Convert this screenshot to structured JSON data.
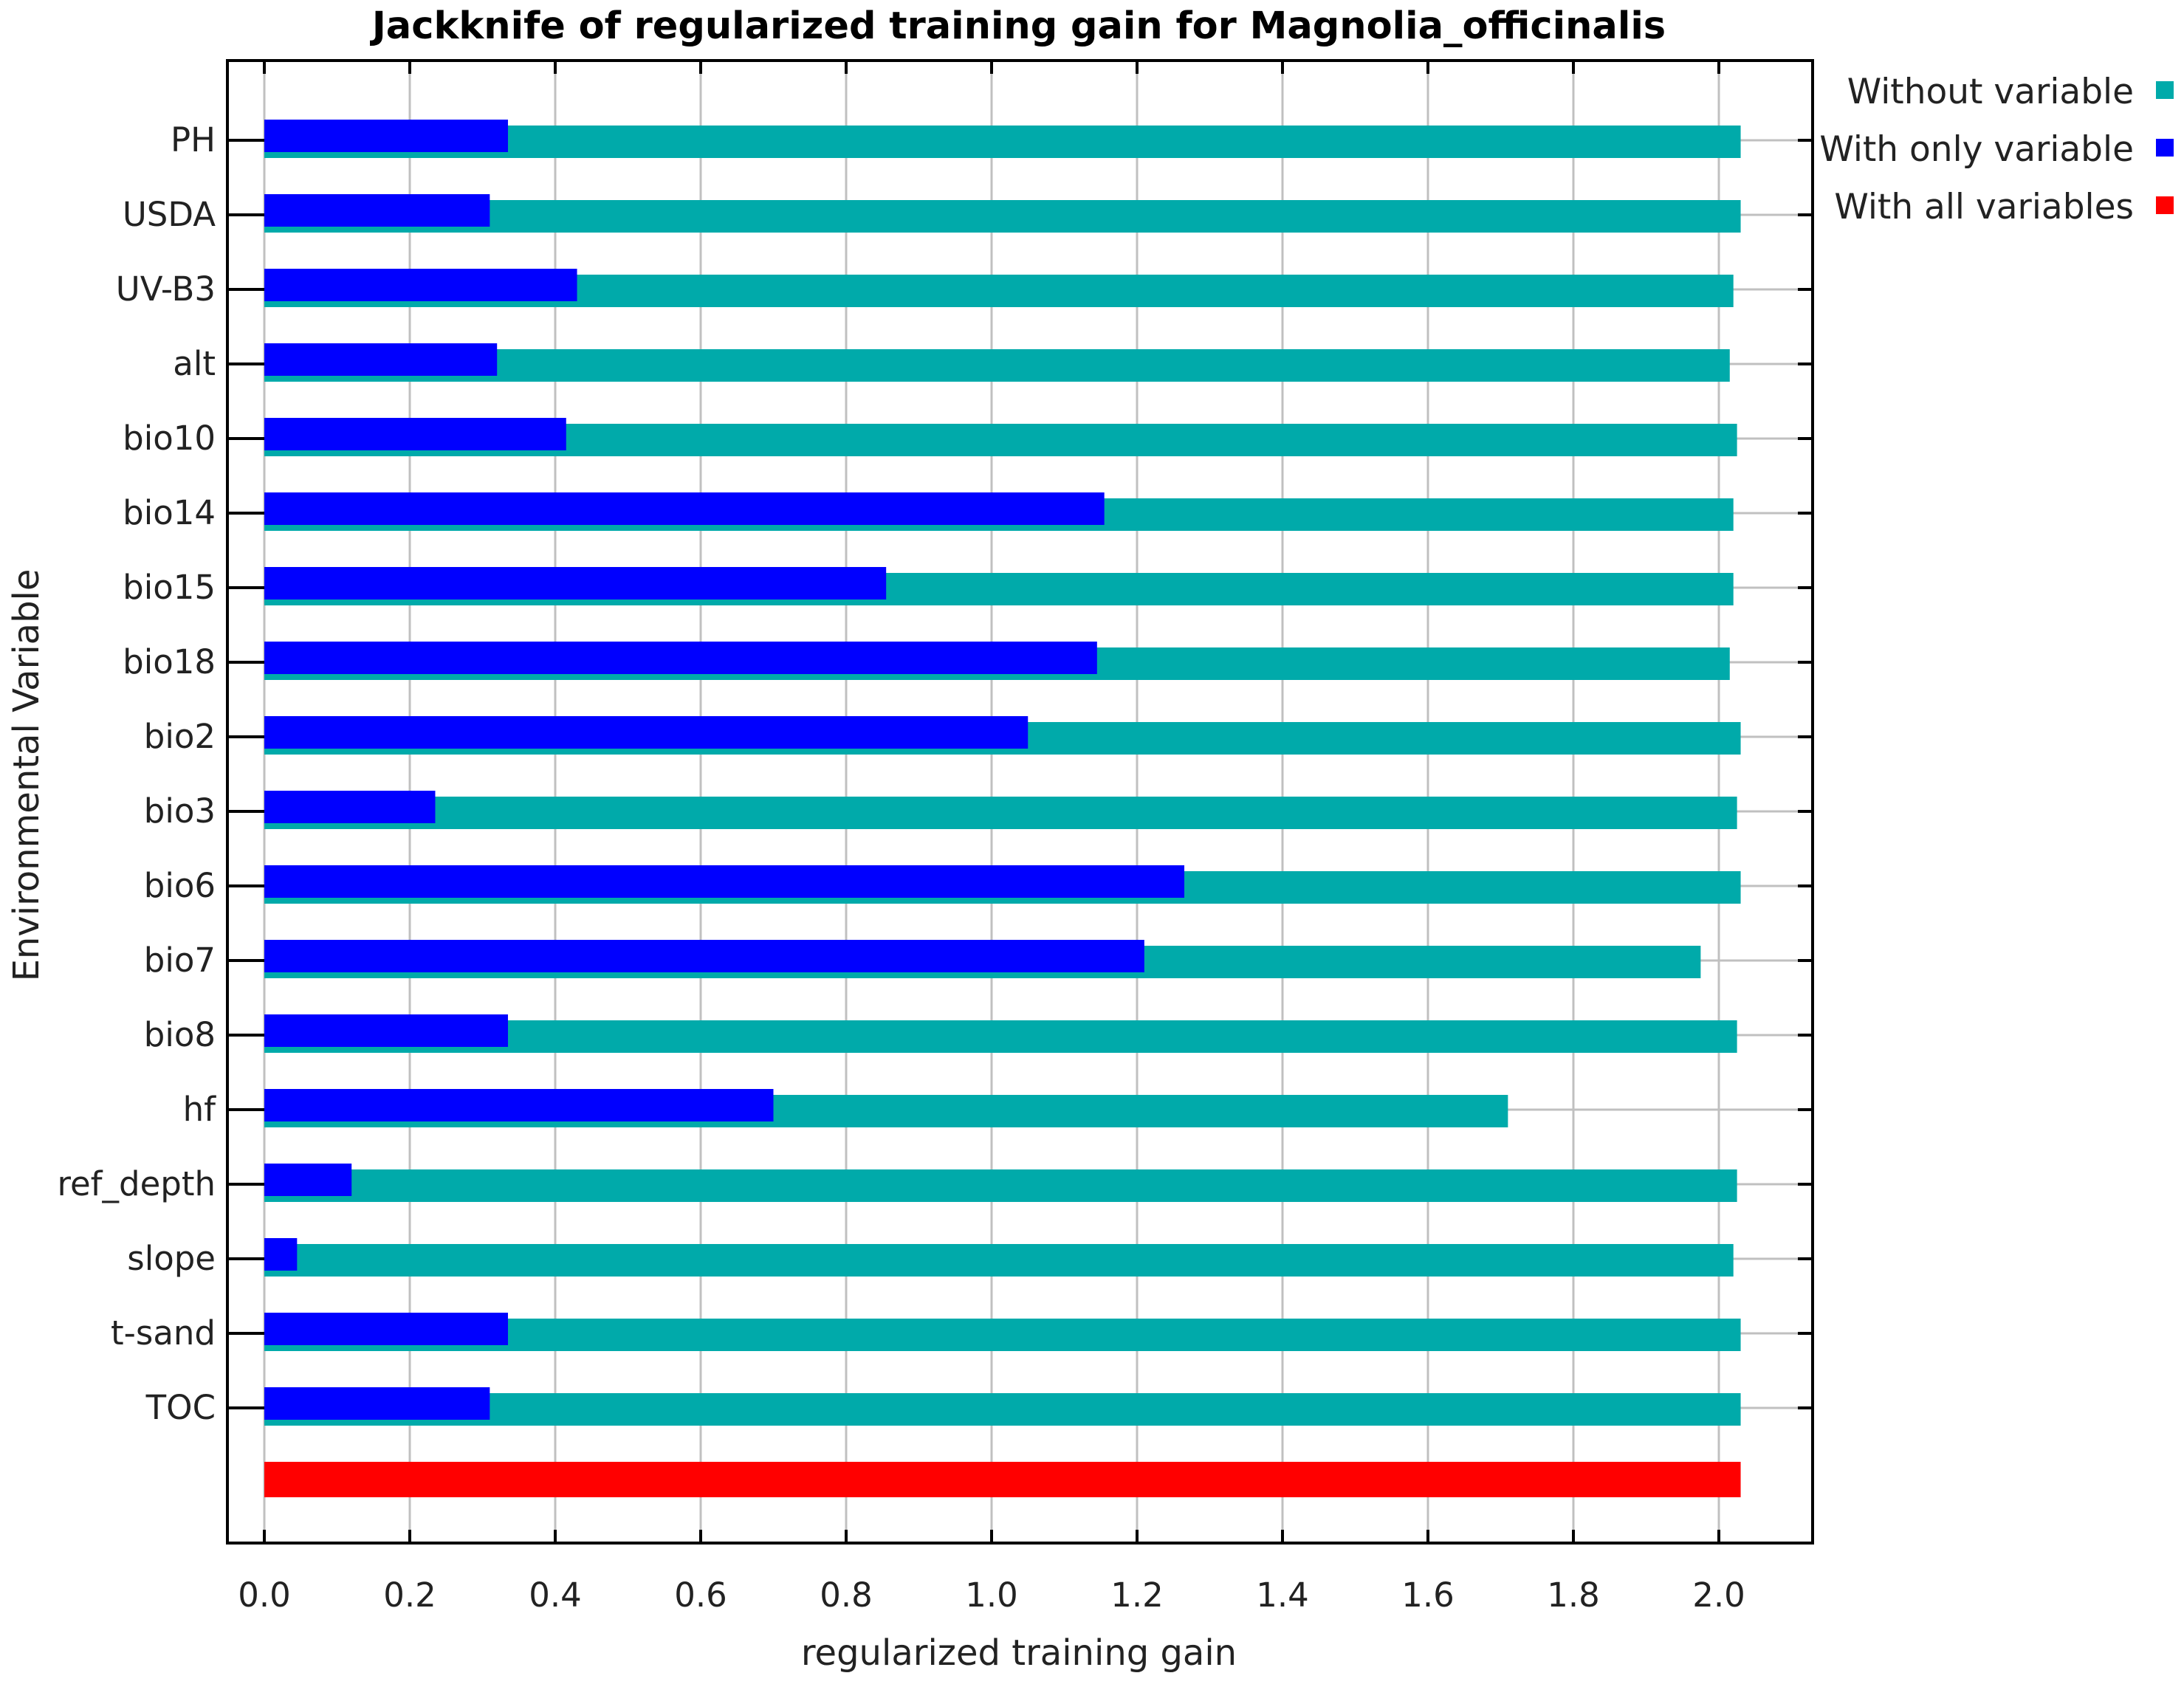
{
  "chart_data": {
    "type": "bar",
    "orientation": "horizontal",
    "title": "Jackknife of regularized training gain for Magnolia_officinalis",
    "xlabel": "regularized training gain",
    "ylabel": "Environmental Variable",
    "xlim": [
      0,
      2.13
    ],
    "xticks": [
      "0.0",
      "0.2",
      "0.4",
      "0.6",
      "0.8",
      "1.0",
      "1.2",
      "1.4",
      "1.6",
      "1.8",
      "2.0"
    ],
    "grid": true,
    "legend_position": "top-right",
    "categories": [
      "PH",
      "USDA",
      "UV-B3",
      "alt",
      "bio10",
      "bio14",
      "bio15",
      "bio18",
      "bio2",
      "bio3",
      "bio6",
      "bio7",
      "bio8",
      "hf",
      "ref_depth",
      "slope",
      "t-sand",
      "TOC"
    ],
    "series": [
      {
        "name": "Without variable",
        "color": "#00aaaa",
        "values": [
          2.03,
          2.03,
          2.02,
          2.015,
          2.025,
          2.02,
          2.02,
          2.015,
          2.03,
          2.025,
          2.03,
          1.975,
          2.025,
          1.71,
          2.025,
          2.02,
          2.03,
          2.03
        ]
      },
      {
        "name": "With only variable",
        "color": "#0000ff",
        "values": [
          0.335,
          0.31,
          0.43,
          0.32,
          0.415,
          1.155,
          0.855,
          1.145,
          1.05,
          0.235,
          1.265,
          1.21,
          0.335,
          0.7,
          0.12,
          0.045,
          0.335,
          0.31
        ]
      },
      {
        "name": "With all variables",
        "color": "#ff0000",
        "value": 2.03
      }
    ]
  }
}
